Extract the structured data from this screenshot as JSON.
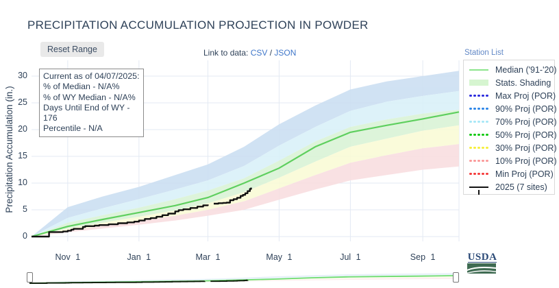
{
  "title": "PRECIPITATION ACCUMULATION PROJECTION IN POWDER",
  "toolbar": {
    "reset_button": "Reset Range",
    "link_prefix": "Link to data: ",
    "csv_link": "CSV",
    "separator": " / ",
    "json_link": "JSON",
    "station_list": "Station List"
  },
  "info_box": {
    "lines": [
      "Current as of 04/07/2025:",
      "% of Median - N/A%",
      "% of WY Median - N/A%",
      "Days Until End of WY - 176",
      "Percentile - N/A"
    ]
  },
  "legend": {
    "items": [
      {
        "label": "Median ('91-'20)",
        "swatch": "line",
        "color": "#8be48b"
      },
      {
        "label": "Stats. Shading",
        "swatch": "band",
        "color": "#d6f5d0"
      },
      {
        "label": "Max Proj (POR)",
        "swatch": "dots",
        "color": "#2b2bdd"
      },
      {
        "label": "90% Proj (POR)",
        "swatch": "dots",
        "color": "#2e86e8"
      },
      {
        "label": "70% Proj (POR)",
        "swatch": "dots",
        "color": "#a8e8f7"
      },
      {
        "label": "50% Proj (POR)",
        "swatch": "dots",
        "color": "#12c912"
      },
      {
        "label": "30% Proj (POR)",
        "swatch": "dots",
        "color": "#f7ef3c"
      },
      {
        "label": "10% Proj (POR)",
        "swatch": "dots",
        "color": "#fa9a9a"
      },
      {
        "label": "Min Proj (POR)",
        "swatch": "dots",
        "color": "#f53b3b"
      },
      {
        "label": "2025 (7 sites)",
        "swatch": "line-tick",
        "color": "#111111"
      }
    ]
  },
  "axes": {
    "y_title": "Precipitation Accumulation (in.)",
    "y_ticks": [
      "0",
      "5",
      "10",
      "15",
      "20",
      "25",
      "30"
    ],
    "y_tick_values": [
      0,
      5,
      10,
      15,
      20,
      25,
      30
    ],
    "x_ticks": [
      {
        "label": "Nov 1",
        "day": 31
      },
      {
        "label": "Jan 1",
        "day": 92
      },
      {
        "label": "Mar 1",
        "day": 151
      },
      {
        "label": "May 1",
        "day": 212
      },
      {
        "label": "Jul 1",
        "day": 273
      },
      {
        "label": "Sep 1",
        "day": 335
      }
    ]
  },
  "branding": {
    "usda": "USDA"
  },
  "colors": {
    "text_navy": "#2e4158",
    "link_blue": "#3f76c9",
    "grid": "#e3e9f3",
    "band_max_90": "#ccdff2",
    "band_90_70": "#daf1f9",
    "band_70_30": "#daf3d6",
    "band_30_10": "#fafbd7",
    "band_10_min": "#f9dee1",
    "median_line": "#5ecf5e",
    "line_2025": "#111111"
  },
  "chart_data": {
    "type": "line",
    "title": "PRECIPITATION ACCUMULATION PROJECTION IN POWDER",
    "xlabel": "",
    "ylabel": "Precipitation Accumulation (in.)",
    "ylim": [
      0,
      33
    ],
    "x_day_zero": "Oct 1 (start of water year)",
    "x_days": [
      0,
      31,
      61,
      92,
      123,
      151,
      182,
      212,
      243,
      273,
      304,
      335,
      366
    ],
    "series": [
      {
        "name": "Max (POR)",
        "values": [
          0,
          5.5,
          7.5,
          9.3,
          11.5,
          13.5,
          16.8,
          21.0,
          24.5,
          27.5,
          29.0,
          30.0,
          31.0
        ]
      },
      {
        "name": "90% (POR)",
        "values": [
          0,
          3.5,
          5.3,
          7.0,
          8.8,
          10.5,
          13.2,
          17.0,
          20.5,
          23.5,
          25.2,
          26.3,
          27.2
        ]
      },
      {
        "name": "70% (POR)",
        "values": [
          0,
          2.6,
          4.0,
          5.4,
          7.0,
          8.6,
          10.9,
          14.2,
          17.8,
          20.5,
          21.9,
          23.0,
          23.7
        ]
      },
      {
        "name": "Median ('91-'20)",
        "values": [
          0,
          1.9,
          3.2,
          4.5,
          5.8,
          7.3,
          10.0,
          12.8,
          16.8,
          19.5,
          20.8,
          22.0,
          23.3
        ]
      },
      {
        "name": "30% (POR)",
        "values": [
          0,
          1.5,
          2.6,
          3.7,
          4.9,
          6.2,
          8.3,
          11.0,
          14.0,
          16.8,
          18.3,
          19.8,
          20.8
        ]
      },
      {
        "name": "10% (POR)",
        "values": [
          0,
          1.1,
          2.0,
          2.9,
          3.9,
          5.0,
          6.6,
          9.0,
          11.5,
          13.8,
          15.2,
          16.5,
          17.3
        ]
      },
      {
        "name": "Min (POR)",
        "values": [
          0,
          0.8,
          1.5,
          2.2,
          3.0,
          3.9,
          5.0,
          6.9,
          8.8,
          10.5,
          11.5,
          12.5,
          13.1
        ]
      }
    ],
    "bands": [
      {
        "upper": 0,
        "lower": 1,
        "fill": "#ccdff2"
      },
      {
        "upper": 1,
        "lower": 2,
        "fill": "#daf1f9"
      },
      {
        "upper": 2,
        "lower": 4,
        "fill": "#daf3d6"
      },
      {
        "upper": 4,
        "lower": 5,
        "fill": "#fafbd7"
      },
      {
        "upper": 5,
        "lower": 6,
        "fill": "#f9dee1"
      }
    ],
    "line_2025": {
      "name": "2025 (7 sites)",
      "current_as_of": "04/07/2025",
      "segments": [
        [
          [
            0,
            0
          ],
          [
            14,
            0
          ],
          [
            15,
            0.85
          ],
          [
            27,
            0.95
          ],
          [
            31,
            1.1
          ],
          [
            34,
            1.3
          ],
          [
            36,
            1.45
          ],
          [
            44,
            1.8
          ],
          [
            46,
            1.95
          ],
          [
            54,
            2.05
          ],
          [
            58,
            2.15
          ],
          [
            66,
            2.3
          ],
          [
            74,
            2.5
          ],
          [
            82,
            2.65
          ],
          [
            88,
            2.8
          ],
          [
            92,
            3.0
          ],
          [
            97,
            3.3
          ],
          [
            102,
            3.45
          ],
          [
            107,
            3.7
          ],
          [
            112,
            4.0
          ],
          [
            117,
            4.3
          ],
          [
            123,
            4.7
          ],
          [
            126,
            4.95
          ],
          [
            130,
            5.1
          ],
          [
            136,
            5.35
          ],
          [
            142,
            5.6
          ],
          [
            147,
            5.85
          ],
          [
            151,
            6.0
          ]
        ],
        [
          [
            156,
            6.15
          ],
          [
            160,
            6.25
          ],
          [
            164,
            6.3
          ],
          [
            167,
            6.35
          ],
          [
            170,
            6.8
          ],
          [
            173,
            7.0
          ],
          [
            176,
            7.25
          ],
          [
            179,
            7.6
          ],
          [
            181,
            7.8
          ],
          [
            183,
            8.1
          ],
          [
            185,
            8.5
          ],
          [
            187,
            8.9
          ],
          [
            188,
            9.15
          ]
        ]
      ]
    }
  }
}
